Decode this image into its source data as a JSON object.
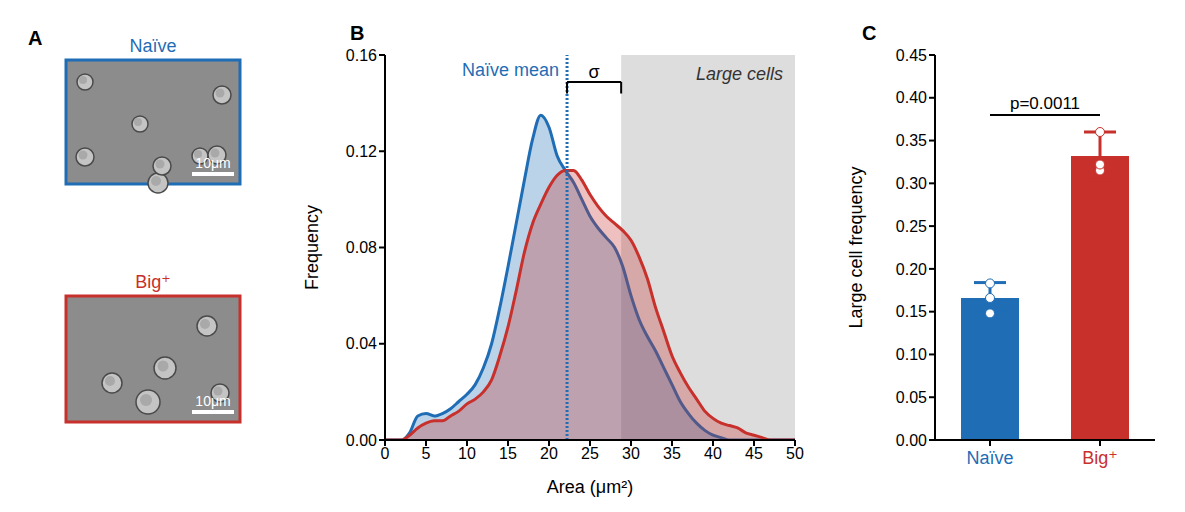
{
  "chart_data": [
    {
      "panel": "A",
      "type": "image",
      "images": [
        {
          "title": "Naïve",
          "color": "#1f6db5"
        },
        {
          "title": "Big⁺",
          "color": "#c8302c"
        }
      ],
      "scale_bar": "10μm"
    },
    {
      "panel": "B",
      "type": "area",
      "x": [
        0,
        1,
        2,
        3,
        4,
        5,
        6,
        7,
        8,
        9,
        10,
        11,
        12,
        13,
        14,
        15,
        16,
        17,
        18,
        19,
        20,
        21,
        22,
        23,
        24,
        25,
        26,
        27,
        28,
        29,
        30,
        31,
        32,
        33,
        34,
        35,
        36,
        37,
        38,
        39,
        40,
        41,
        42,
        43,
        44,
        45,
        46,
        47,
        48,
        49,
        50
      ],
      "series": [
        {
          "name": "Naïve",
          "color": "#1f6db5",
          "values": [
            0,
            0,
            0,
            0.003,
            0.01,
            0.011,
            0.01,
            0.011,
            0.013,
            0.016,
            0.019,
            0.023,
            0.03,
            0.04,
            0.055,
            0.072,
            0.09,
            0.108,
            0.125,
            0.135,
            0.13,
            0.118,
            0.112,
            0.107,
            0.1,
            0.093,
            0.088,
            0.084,
            0.08,
            0.072,
            0.06,
            0.05,
            0.043,
            0.037,
            0.03,
            0.023,
            0.016,
            0.011,
            0.007,
            0.004,
            0.002,
            0.001,
            0,
            0,
            0,
            0,
            0,
            0,
            0,
            0,
            0
          ]
        },
        {
          "name": "Big⁺",
          "color": "#c8302c",
          "values": [
            0,
            0,
            0,
            0.002,
            0.005,
            0.007,
            0.008,
            0.008,
            0.01,
            0.012,
            0.015,
            0.017,
            0.02,
            0.025,
            0.035,
            0.047,
            0.062,
            0.078,
            0.09,
            0.098,
            0.105,
            0.11,
            0.112,
            0.112,
            0.108,
            0.102,
            0.097,
            0.093,
            0.09,
            0.087,
            0.083,
            0.076,
            0.067,
            0.055,
            0.045,
            0.035,
            0.028,
            0.022,
            0.017,
            0.012,
            0.009,
            0.007,
            0.006,
            0.005,
            0.003,
            0.002,
            0.001,
            0,
            0,
            0,
            0
          ]
        }
      ],
      "xlim": [
        0,
        50
      ],
      "xticks": [
        0,
        5,
        10,
        15,
        20,
        25,
        30,
        35,
        40,
        45,
        50
      ],
      "ylim": [
        0,
        0.16
      ],
      "yticks": [
        {
          "value": 0,
          "label": "0.00"
        },
        {
          "value": 0.04,
          "label": "0.04"
        },
        {
          "value": 0.08,
          "label": "0.08"
        },
        {
          "value": 0.12,
          "label": "0.12"
        },
        {
          "value": 0.16,
          "label": "0.16"
        }
      ],
      "x_label": "Area (μm²)",
      "y_label": "Frequency",
      "reference_line": {
        "label": "Naïve mean",
        "x": 22.2,
        "color": "#1f6db5"
      },
      "bracket": {
        "label": "σ",
        "x": [
          22.2,
          28.8
        ]
      },
      "shaded_region": {
        "label": "Large cells",
        "x": [
          28.8,
          50
        ]
      }
    },
    {
      "panel": "C",
      "type": "bar",
      "categories": [
        "Naïve",
        "Big⁺"
      ],
      "values": [
        0.166,
        0.332
      ],
      "errors": [
        0.018,
        0.028
      ],
      "points": [
        [
          0.183,
          0.166,
          0.148
        ],
        [
          0.36,
          0.315,
          0.322
        ]
      ],
      "colors": [
        "#1f6db5",
        "#c8302c"
      ],
      "ylim": [
        0,
        0.45
      ],
      "yticks": [
        {
          "value": 0,
          "label": "0.00"
        },
        {
          "value": 0.05,
          "label": "0.05"
        },
        {
          "value": 0.1,
          "label": "0.10"
        },
        {
          "value": 0.15,
          "label": "0.15"
        },
        {
          "value": 0.2,
          "label": "0.20"
        },
        {
          "value": 0.25,
          "label": "0.25"
        },
        {
          "value": 0.3,
          "label": "0.30"
        },
        {
          "value": 0.35,
          "label": "0.35"
        },
        {
          "value": 0.4,
          "label": "0.40"
        },
        {
          "value": 0.45,
          "label": "0.45"
        }
      ],
      "y_label": "Large cell frequency",
      "annotation": "p=0.0011"
    }
  ]
}
